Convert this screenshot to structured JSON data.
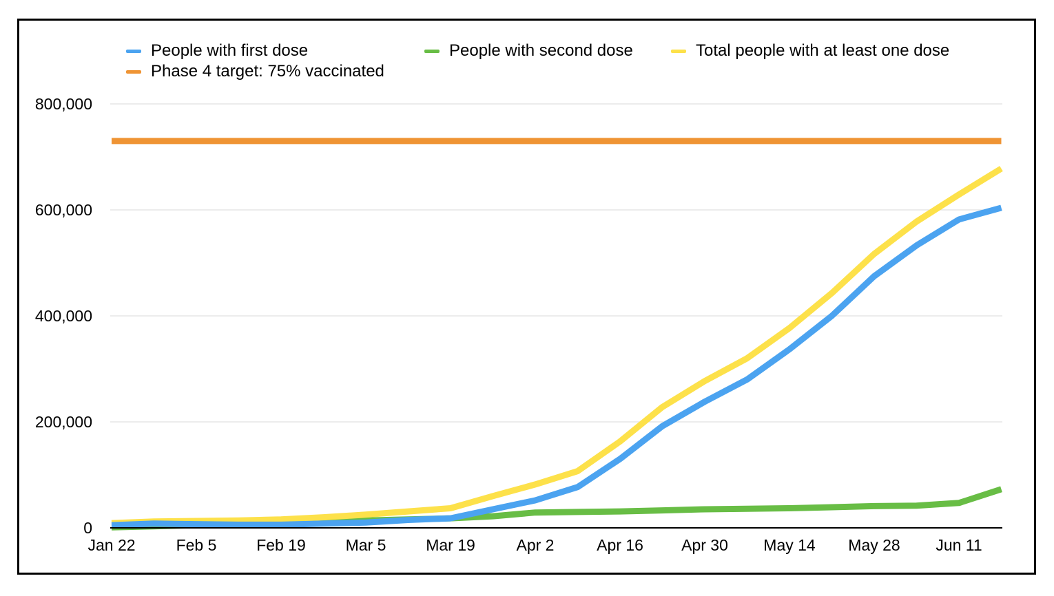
{
  "chart_data": {
    "type": "line",
    "title": "",
    "xlabel": "",
    "ylabel": "",
    "ylim": [
      0,
      800000
    ],
    "yticks": [
      0,
      200000,
      400000,
      600000,
      800000
    ],
    "ytick_labels": [
      "0",
      "200,000",
      "400,000",
      "600,000",
      "800,000"
    ],
    "x": [
      "Jan 22",
      "Jan 29",
      "Feb 5",
      "Feb 12",
      "Feb 19",
      "Feb 26",
      "Mar 5",
      "Mar 12",
      "Mar 19",
      "Mar 26",
      "Apr 2",
      "Apr 9",
      "Apr 16",
      "Apr 23",
      "Apr 30",
      "May 7",
      "May 14",
      "May 21",
      "May 28",
      "Jun 4",
      "Jun 11",
      "Jun 18"
    ],
    "xtick_labels": [
      "Jan 22",
      "Feb 5",
      "Feb 19",
      "Mar 5",
      "Mar 19",
      "Apr 2",
      "Apr 16",
      "Apr 30",
      "May 14",
      "May 28",
      "Jun 11"
    ],
    "grid": true,
    "legend_position": "top",
    "series": [
      {
        "name": "People with first dose",
        "color": "#4ba3f0",
        "values": [
          5000,
          8000,
          7000,
          6000,
          6000,
          8000,
          10000,
          15000,
          18000,
          35000,
          52000,
          77000,
          130000,
          192000,
          238000,
          280000,
          337000,
          400000,
          475000,
          533000,
          582000,
          604000
        ]
      },
      {
        "name": "People with second dose",
        "color": "#68bd45",
        "values": [
          1000,
          3000,
          5000,
          8000,
          10000,
          12000,
          14000,
          16000,
          18000,
          22000,
          29000,
          30000,
          31000,
          33000,
          35000,
          36000,
          37000,
          39000,
          41000,
          42000,
          47000,
          73000
        ]
      },
      {
        "name": "Total people with at least one dose",
        "color": "#fde14a",
        "values": [
          9000,
          12000,
          13000,
          14000,
          16000,
          20000,
          25000,
          31000,
          37000,
          60000,
          82000,
          107000,
          163000,
          228000,
          277000,
          320000,
          377000,
          443000,
          517000,
          578000,
          629000,
          678000
        ]
      },
      {
        "name": "Phase 4 target: 75% vaccinated",
        "color": "#ef9434",
        "values": [
          730000,
          730000,
          730000,
          730000,
          730000,
          730000,
          730000,
          730000,
          730000,
          730000,
          730000,
          730000,
          730000,
          730000,
          730000,
          730000,
          730000,
          730000,
          730000,
          730000,
          730000,
          730000
        ]
      }
    ]
  }
}
